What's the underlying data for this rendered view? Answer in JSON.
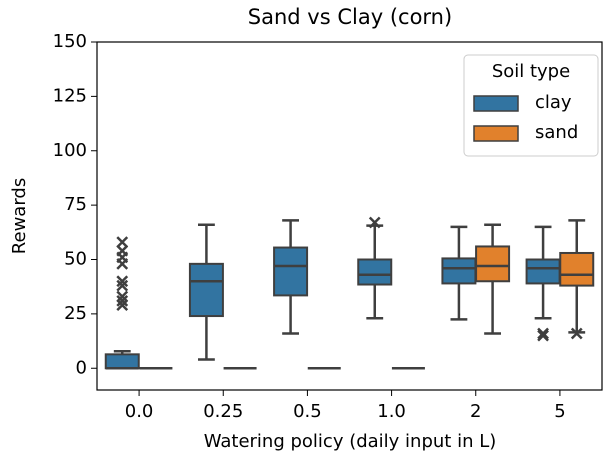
{
  "chart_data": {
    "type": "box",
    "title": "Sand vs Clay (corn)",
    "xlabel": "Watering policy (daily input in L)",
    "ylabel": "Rewards",
    "categories": [
      "0.0",
      "0.25",
      "0.5",
      "1.0",
      "2",
      "5"
    ],
    "ylim": [
      -10,
      150
    ],
    "yticks": [
      0,
      25,
      50,
      75,
      100,
      125,
      150
    ],
    "legend": {
      "title": "Soil type",
      "position": "upper right"
    },
    "series": [
      {
        "name": "clay",
        "color": "#3274a1",
        "boxes": [
          {
            "whislo": 0,
            "q1": 0,
            "med": 0,
            "q3": 6.4,
            "whishi": 7.8,
            "fliers": [
              58,
              54,
              51,
              48,
              40,
              38,
              33,
              31,
              29
            ]
          },
          {
            "whislo": 4,
            "q1": 24,
            "med": 40,
            "q3": 48,
            "whishi": 66,
            "fliers": []
          },
          {
            "whislo": 16,
            "q1": 33.5,
            "med": 47,
            "q3": 55.5,
            "whishi": 68,
            "fliers": []
          },
          {
            "whislo": 23,
            "q1": 38.5,
            "med": 43,
            "q3": 50,
            "whishi": 65.6,
            "fliers": [
              67
            ]
          },
          {
            "whislo": 22.5,
            "q1": 39,
            "med": 46,
            "q3": 50.5,
            "whishi": 65,
            "fliers": []
          },
          {
            "whislo": 23,
            "q1": 39,
            "med": 46,
            "q3": 50,
            "whishi": 65,
            "fliers": [
              16,
              15
            ]
          }
        ]
      },
      {
        "name": "sand",
        "color": "#e1812c",
        "boxes": [
          {
            "whislo": 0,
            "q1": 0,
            "med": 0,
            "q3": 0,
            "whishi": 0,
            "fliers": []
          },
          {
            "whislo": 0,
            "q1": 0,
            "med": 0,
            "q3": 0,
            "whishi": 0,
            "fliers": []
          },
          {
            "whislo": 0,
            "q1": 0,
            "med": 0,
            "q3": 0,
            "whishi": 0,
            "fliers": []
          },
          {
            "whislo": 0,
            "q1": 0,
            "med": 0,
            "q3": 0,
            "whishi": 0,
            "fliers": []
          },
          {
            "whislo": 16,
            "q1": 40,
            "med": 47,
            "q3": 56,
            "whishi": 66,
            "fliers": []
          },
          {
            "whislo": 16.5,
            "q1": 38,
            "med": 43,
            "q3": 53,
            "whishi": 68,
            "fliers": [
              16
            ]
          }
        ]
      }
    ]
  }
}
